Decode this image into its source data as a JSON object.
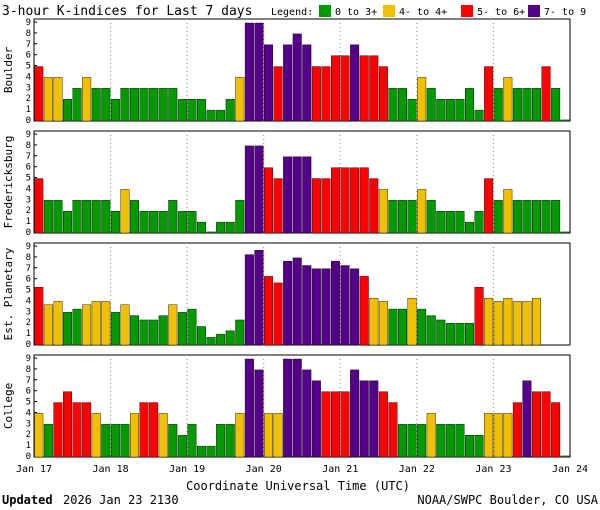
{
  "title": "3-hour K-indices for Last 7 days",
  "legend": {
    "label": "Legend:",
    "items": [
      {
        "label": "0 to 3+",
        "color": "#009900"
      },
      {
        "label": "4- to 4+",
        "color": "#f0c000"
      },
      {
        "label": "5- to 6+",
        "color": "#ff0000"
      },
      {
        "label": "7- to 9",
        "color": "#550088"
      }
    ]
  },
  "chart_data": {
    "type": "bar",
    "x_tick_labels": [
      "Jan 17",
      "Jan 18",
      "Jan 19",
      "Jan 20",
      "Jan 21",
      "Jan 22",
      "Jan 23",
      "Jan 24"
    ],
    "xlabel": "Coordinate Universal Time (UTC)",
    "y_tick_labels": [
      "0",
      "1",
      "2",
      "3",
      "4",
      "5",
      "6",
      "7",
      "8",
      "9"
    ],
    "ylim": [
      0,
      9
    ],
    "panels": [
      {
        "name": "Boulder",
        "values": [
          5,
          4,
          4,
          2,
          3,
          4,
          3,
          3,
          2,
          3,
          3,
          3,
          3,
          3,
          3,
          2,
          2,
          2,
          1,
          1,
          2,
          4,
          9,
          9,
          7,
          5,
          7,
          8,
          7,
          5,
          5,
          6,
          6,
          7,
          6,
          6,
          5,
          3,
          3,
          2,
          4,
          3,
          2,
          2,
          2,
          3,
          1,
          5,
          3,
          4,
          3,
          3,
          3,
          5,
          3,
          0.1
        ]
      },
      {
        "name": "Fredericksburg",
        "values": [
          5,
          3,
          3,
          2,
          3,
          3,
          3,
          3,
          2,
          4,
          3,
          2,
          2,
          2,
          3,
          2,
          2,
          1,
          0.1,
          1,
          1,
          3,
          8,
          8,
          6,
          5,
          7,
          7,
          7,
          5,
          5,
          6,
          6,
          6,
          6,
          5,
          4,
          3,
          3,
          3,
          4,
          3,
          2,
          2,
          2,
          1,
          2,
          5,
          3,
          4,
          3,
          3,
          3,
          3,
          3,
          0.1
        ]
      },
      {
        "name": "Est. Planetary",
        "values": [
          5.3,
          3.7,
          4,
          3,
          3.3,
          3.7,
          4,
          4,
          3,
          3.7,
          2.7,
          2.3,
          2.3,
          2.7,
          3.7,
          3,
          3.3,
          1.7,
          0.7,
          1,
          1.3,
          2.3,
          8.3,
          8.7,
          6.3,
          5.7,
          7.7,
          8,
          7.3,
          7,
          7,
          7.7,
          7.3,
          7,
          6.3,
          4.3,
          4,
          3.3,
          3.3,
          4.3,
          3.3,
          2.7,
          2.3,
          2,
          2,
          2,
          5.3,
          4.3,
          4,
          4.3,
          4,
          4,
          4.3
        ]
      },
      {
        "name": "College",
        "values": [
          4,
          3,
          5,
          6,
          5,
          5,
          4,
          3,
          3,
          3,
          4,
          5,
          5,
          4,
          3,
          2,
          3,
          1,
          1,
          3,
          3,
          4,
          9,
          8,
          4,
          4,
          9,
          9,
          8,
          7,
          6,
          6,
          6,
          8,
          7,
          7,
          6,
          5,
          3,
          3,
          3,
          4,
          3,
          3,
          3,
          2,
          2,
          4,
          4,
          4,
          5,
          7,
          6,
          6,
          5,
          0.1
        ]
      }
    ]
  },
  "footer": {
    "updated_label": "Updated",
    "updated_value": "2026 Jan 23 2130",
    "credit": "NOAA/SWPC Boulder, CO USA"
  }
}
